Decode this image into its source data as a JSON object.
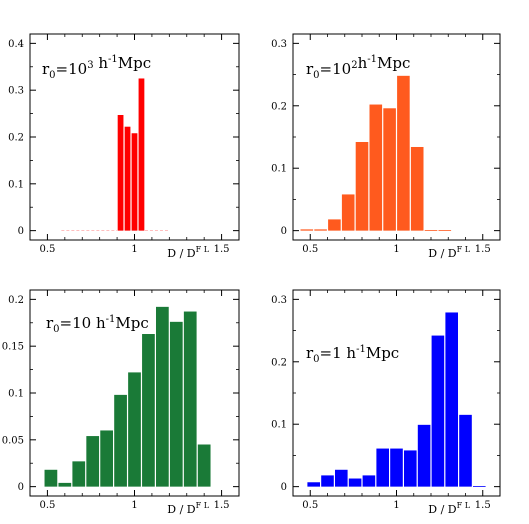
{
  "chart_data": [
    {
      "type": "bar",
      "panel_label": "r0=10^3 h^-1 Mpc",
      "label_parts": {
        "base": "r",
        "sub": "0",
        "eq": "=10",
        "exp": "3",
        "unit": " h",
        "unit_exp": "-1",
        "tail": "Mpc"
      },
      "xlabel": "D / D^FL",
      "xlabel_parts": {
        "main": "D / D",
        "sup": "F L"
      },
      "xlim": [
        0.4,
        1.6
      ],
      "ylim": [
        -0.02,
        0.42
      ],
      "xticks": [
        0.5,
        1,
        1.5
      ],
      "xtick_labels": [
        "0.5",
        "1",
        "1.5"
      ],
      "yticks": [
        0,
        0.1,
        0.2,
        0.3,
        0.4
      ],
      "ytick_labels": [
        "0",
        "0.1",
        "0.2",
        "0.3",
        "0.4"
      ],
      "bin_width": 0.04,
      "bin_centers": [
        0.92,
        0.96,
        1.0,
        1.04
      ],
      "values": [
        0.247,
        0.222,
        0.208,
        0.325
      ],
      "color": "#ff0000",
      "empty_bins_shown": true
    },
    {
      "type": "bar",
      "panel_label": "r0=10^2 h^-1 Mpc",
      "label_parts": {
        "base": "r",
        "sub": "0",
        "eq": "=10",
        "exp": "2",
        "unit": "h",
        "unit_exp": "-1",
        "tail": "Mpc"
      },
      "xlabel": "D / D^FL",
      "xlabel_parts": {
        "main": "D / D",
        "sup": "F L"
      },
      "xlim": [
        0.4,
        1.6
      ],
      "ylim": [
        -0.015,
        0.315
      ],
      "xticks": [
        0.5,
        1,
        1.5
      ],
      "xtick_labels": [
        "0.5",
        "1",
        "1.5"
      ],
      "yticks": [
        0,
        0.1,
        0.2,
        0.3
      ],
      "ytick_labels": [
        "0",
        "0.1",
        "0.2",
        "0.3"
      ],
      "bin_width": 0.08,
      "bin_centers": [
        0.48,
        0.56,
        0.64,
        0.72,
        0.8,
        0.88,
        0.96,
        1.04,
        1.12,
        1.2,
        1.28
      ],
      "values": [
        0.002,
        0.002,
        0.018,
        0.058,
        0.142,
        0.202,
        0.196,
        0.248,
        0.134,
        0.001,
        0.001
      ],
      "color": "#ff5a1e"
    },
    {
      "type": "bar",
      "panel_label": "r0=10 h^-1 Mpc",
      "label_parts": {
        "base": "r",
        "sub": "0",
        "eq": "=10 h",
        "exp": "",
        "unit": "",
        "unit_exp": "-1",
        "tail": "Mpc"
      },
      "xlabel": "D / D^FL",
      "xlabel_parts": {
        "main": "D / D",
        "sup": "F L"
      },
      "xlim": [
        0.4,
        1.6
      ],
      "ylim": [
        -0.01,
        0.21
      ],
      "xticks": [
        0.5,
        1,
        1.5
      ],
      "xtick_labels": [
        "0.5",
        "1",
        "1.5"
      ],
      "yticks": [
        0,
        0.05,
        0.1,
        0.15,
        0.2
      ],
      "ytick_labels": [
        "0",
        "0.05",
        "0.1",
        "0.15",
        "0.2"
      ],
      "bin_width": 0.08,
      "bin_centers": [
        0.52,
        0.6,
        0.68,
        0.76,
        0.84,
        0.92,
        1.0,
        1.08,
        1.16,
        1.24,
        1.32,
        1.4
      ],
      "values": [
        0.018,
        0.004,
        0.027,
        0.054,
        0.06,
        0.098,
        0.122,
        0.163,
        0.192,
        0.176,
        0.187,
        0.045
      ],
      "color": "#1a7a37"
    },
    {
      "type": "bar",
      "panel_label": "r0=1 h^-1 Mpc",
      "label_parts": {
        "base": "r",
        "sub": "0",
        "eq": "=1 h",
        "exp": "",
        "unit": "",
        "unit_exp": "-1",
        "tail": "Mpc"
      },
      "xlabel": "D / D^FL",
      "xlabel_parts": {
        "main": "D / D",
        "sup": "F L"
      },
      "xlim": [
        0.4,
        1.6
      ],
      "ylim": [
        -0.015,
        0.315
      ],
      "xticks": [
        0.5,
        1,
        1.5
      ],
      "xtick_labels": [
        "0.5",
        "1",
        "1.5"
      ],
      "yticks": [
        0,
        0.1,
        0.2,
        0.3
      ],
      "ytick_labels": [
        "0",
        "0.1",
        "0.2",
        "0.3"
      ],
      "bin_width": 0.08,
      "bin_centers": [
        0.52,
        0.6,
        0.68,
        0.76,
        0.84,
        0.92,
        1.0,
        1.08,
        1.16,
        1.24,
        1.32,
        1.4,
        1.48
      ],
      "values": [
        0.007,
        0.018,
        0.027,
        0.013,
        0.018,
        0.061,
        0.061,
        0.058,
        0.099,
        0.242,
        0.279,
        0.115,
        0.001
      ],
      "color": "#0000ff"
    }
  ]
}
